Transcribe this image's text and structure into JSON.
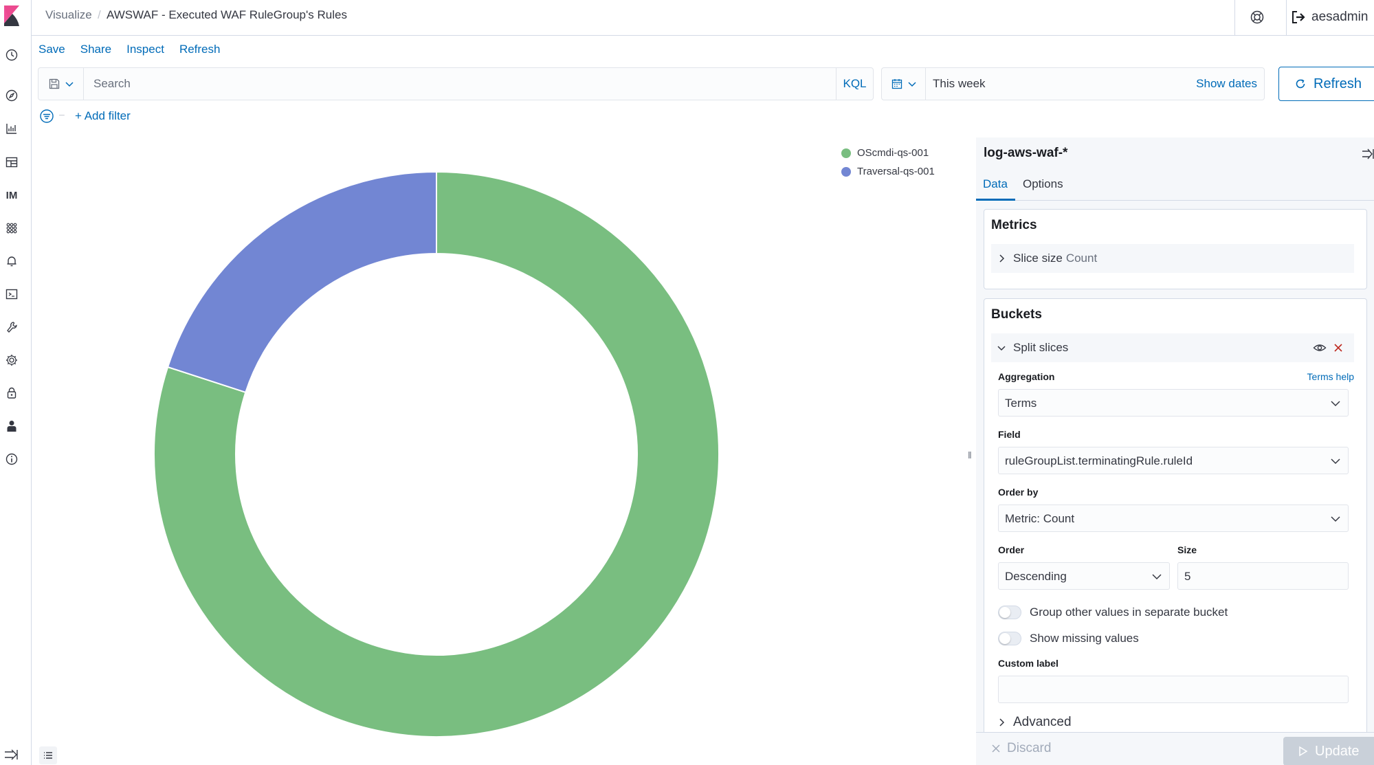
{
  "header": {
    "breadcrumb_parent": "Visualize",
    "breadcrumb_separator": "/",
    "breadcrumb_current": "AWSWAF - Executed WAF RuleGroup's Rules",
    "user_name": "aesadmin"
  },
  "leftnav": {
    "im_label": "IM"
  },
  "topmenu": {
    "save": "Save",
    "share": "Share",
    "inspect": "Inspect",
    "refresh": "Refresh"
  },
  "querybar": {
    "search_placeholder": "Search",
    "kql": "KQL",
    "date_range": "This week",
    "show_dates": "Show dates",
    "refresh_button": "Refresh"
  },
  "filter": {
    "dash": "–",
    "add_filter": "+ Add filter"
  },
  "chart_data": {
    "type": "pie",
    "donut": true,
    "categories": [
      "OScmdi-qs-001",
      "Traversal-qs-001"
    ],
    "values": [
      80,
      20
    ],
    "colors": [
      "#79be80",
      "#7286d3"
    ],
    "legend_position": "top-right"
  },
  "panel": {
    "index_pattern": "log-aws-waf-*",
    "tab_data": "Data",
    "tab_options": "Options",
    "metrics_title": "Metrics",
    "metric_label": "Slice size",
    "metric_agg": "Count",
    "buckets_title": "Buckets",
    "bucket_label": "Split slices",
    "aggregation_label": "Aggregation",
    "terms_help": "Terms help",
    "aggregation_value": "Terms",
    "field_label": "Field",
    "field_value": "ruleGroupList.terminatingRule.ruleId",
    "orderby_label": "Order by",
    "orderby_value": "Metric: Count",
    "order_label": "Order",
    "order_value": "Descending",
    "size_label": "Size",
    "size_value": "5",
    "group_other_label": "Group other values in separate bucket",
    "show_missing_label": "Show missing values",
    "custom_label_label": "Custom label",
    "custom_label_value": "",
    "advanced_label": "Advanced",
    "discard": "Discard",
    "update": "Update"
  }
}
